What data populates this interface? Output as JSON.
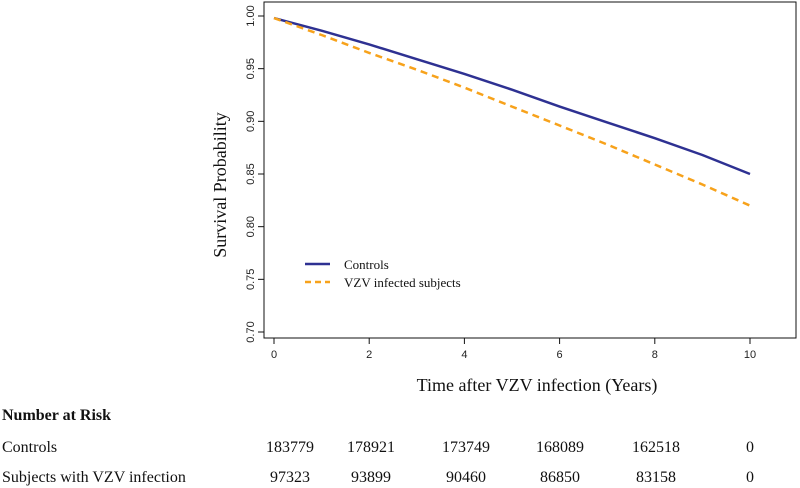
{
  "chart_data": {
    "type": "line",
    "title": "",
    "xlabel": "Time after VZV infection (Years)",
    "ylabel": "Survival Probability",
    "xlim": [
      0,
      10.9
    ],
    "ylim": [
      0.7,
      1.0
    ],
    "x_ticks": [
      0,
      2,
      4,
      6,
      8,
      10
    ],
    "x_tick_labels": [
      "0",
      "2",
      "4",
      "6",
      "8",
      "10"
    ],
    "y_ticks": [
      0.7,
      0.75,
      0.8,
      0.85,
      0.9,
      0.95,
      1.0
    ],
    "y_tick_labels": [
      "0.70",
      "0.75",
      "0.80",
      "0.85",
      "0.90",
      "0.95",
      "1.00"
    ],
    "legend_position": "bottom-left",
    "series": [
      {
        "name": "Controls",
        "color": "#2e3192",
        "dash": "solid",
        "x": [
          0,
          1,
          2,
          3,
          4,
          5,
          6,
          7,
          8,
          9,
          10
        ],
        "values": [
          0.998,
          0.986,
          0.973,
          0.959,
          0.945,
          0.93,
          0.914,
          0.899,
          0.884,
          0.868,
          0.85
        ]
      },
      {
        "name": "VZV infected subjects",
        "color": "#f7a21b",
        "dash": "dashed",
        "x": [
          0,
          1,
          2,
          3,
          4,
          5,
          6,
          7,
          8,
          9,
          10
        ],
        "values": [
          0.998,
          0.982,
          0.965,
          0.949,
          0.932,
          0.914,
          0.896,
          0.878,
          0.859,
          0.84,
          0.82
        ]
      }
    ]
  },
  "risk_table": {
    "title": "Number at Risk",
    "rows": [
      {
        "label": "Controls",
        "values": [
          "183779",
          "178921",
          "173749",
          "168089",
          "162518",
          "0"
        ]
      },
      {
        "label": "Subjects with VZV infection",
        "values": [
          "97323",
          "93899",
          "90460",
          "86850",
          "83158",
          "0"
        ]
      }
    ]
  }
}
